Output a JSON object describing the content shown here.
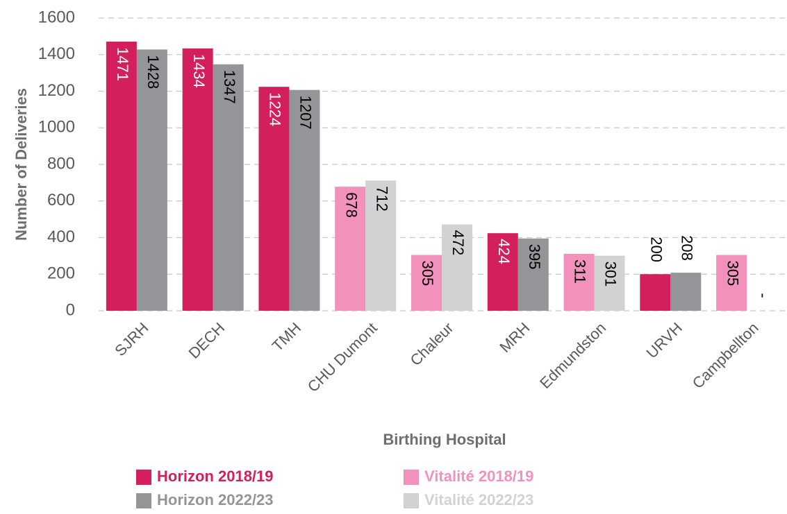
{
  "chart_data": {
    "type": "bar",
    "xlabel": "Birthing Hospital",
    "ylabel": "Number of Deliveries",
    "categories": [
      "SJRH",
      "DECH",
      "TMH",
      "CHU Dumont",
      "Chaleur",
      "MRH",
      "Edmundston",
      "URVH",
      "Campbellton"
    ],
    "series": [
      {
        "name": "Horizon 2018/19",
        "color": "#d31f5c",
        "label_color": "#ffffff",
        "values": [
          1471,
          1434,
          1224,
          null,
          null,
          424,
          null,
          200,
          null
        ]
      },
      {
        "name": "Vitalité 2018/19",
        "color": "#f291bb",
        "label_color": "#000000",
        "values": [
          null,
          null,
          null,
          678,
          305,
          null,
          311,
          null,
          305
        ]
      },
      {
        "name": "Horizon 2022/23",
        "color": "#949598",
        "label_color": "#000000",
        "values": [
          1428,
          1347,
          1207,
          null,
          null,
          395,
          null,
          208,
          null
        ]
      },
      {
        "name": "Vitalité 2022/23",
        "color": "#d2d2d4",
        "label_color": "#000000",
        "values": [
          null,
          null,
          null,
          712,
          472,
          null,
          301,
          null,
          null
        ],
        "value_labels": [
          "",
          "",
          "",
          "712",
          "472",
          "",
          "301",
          "",
          "-"
        ]
      }
    ],
    "ylim": [
      0,
      1600
    ],
    "yticks": [
      0,
      200,
      400,
      600,
      800,
      1000,
      1200,
      1400,
      1600
    ],
    "grid": true
  }
}
